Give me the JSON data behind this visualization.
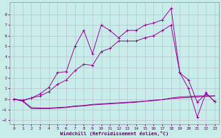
{
  "xlabel": "Windchill (Refroidissement éolien,°C)",
  "bg_color": "#c8ece8",
  "line_color": "#990099",
  "grid_color": "#b0b8cc",
  "xlim": [
    -0.5,
    23.5
  ],
  "ylim": [
    -2.4,
    9.2
  ],
  "xticks": [
    0,
    1,
    2,
    3,
    4,
    5,
    6,
    7,
    8,
    9,
    10,
    11,
    12,
    13,
    14,
    15,
    16,
    17,
    18,
    19,
    20,
    21,
    22,
    23
  ],
  "yticks": [
    -2,
    -1,
    0,
    1,
    2,
    3,
    4,
    5,
    6,
    7,
    8
  ],
  "line1_x": [
    0,
    1,
    2,
    3,
    4,
    5,
    6,
    7,
    8,
    9,
    10,
    11,
    12,
    13,
    14,
    15,
    16,
    17,
    18,
    19,
    20,
    21,
    22,
    23
  ],
  "line1_y": [
    0,
    -0.15,
    -0.8,
    -0.85,
    -0.85,
    -0.8,
    -0.75,
    -0.65,
    -0.6,
    -0.5,
    -0.45,
    -0.4,
    -0.35,
    -0.3,
    -0.25,
    -0.2,
    -0.1,
    -0.05,
    0.05,
    0.1,
    0.15,
    0.2,
    0.25,
    0.3
  ],
  "line2_x": [
    0,
    1,
    2,
    3,
    4,
    5,
    6,
    7,
    8,
    9,
    10,
    11,
    12,
    13,
    14,
    15,
    16,
    17,
    18,
    19,
    20,
    21,
    22,
    23
  ],
  "line2_y": [
    0,
    -0.2,
    -0.9,
    -0.9,
    -0.9,
    -0.85,
    -0.8,
    -0.7,
    -0.65,
    -0.55,
    -0.5,
    -0.45,
    -0.4,
    -0.35,
    -0.3,
    -0.2,
    -0.15,
    -0.05,
    0.1,
    0.2,
    0.25,
    0.3,
    0.3,
    0.3
  ],
  "line3_x": [
    0,
    1,
    2,
    3,
    4,
    5,
    6,
    7,
    8,
    9,
    10,
    11,
    12,
    13,
    14,
    15,
    16,
    17,
    18,
    19,
    20,
    21,
    22,
    23
  ],
  "line3_y": [
    0,
    -0.15,
    0.1,
    0.5,
    1.1,
    2.5,
    2.6,
    5.0,
    6.5,
    4.3,
    7.0,
    6.5,
    5.8,
    6.5,
    6.5,
    7.0,
    7.2,
    7.5,
    8.6,
    2.5,
    1.0,
    -1.7,
    0.6,
    -0.25
  ],
  "line4_x": [
    0,
    1,
    2,
    3,
    4,
    5,
    6,
    7,
    8,
    9,
    10,
    11,
    12,
    13,
    14,
    15,
    16,
    17,
    18,
    19,
    20,
    21,
    22,
    23
  ],
  "line4_y": [
    0,
    -0.1,
    0.1,
    0.3,
    0.7,
    1.4,
    1.8,
    2.7,
    3.3,
    3.2,
    4.5,
    4.8,
    5.5,
    5.5,
    5.5,
    5.8,
    6.0,
    6.5,
    7.0,
    2.5,
    1.8,
    -0.3,
    0.5,
    -0.2
  ]
}
